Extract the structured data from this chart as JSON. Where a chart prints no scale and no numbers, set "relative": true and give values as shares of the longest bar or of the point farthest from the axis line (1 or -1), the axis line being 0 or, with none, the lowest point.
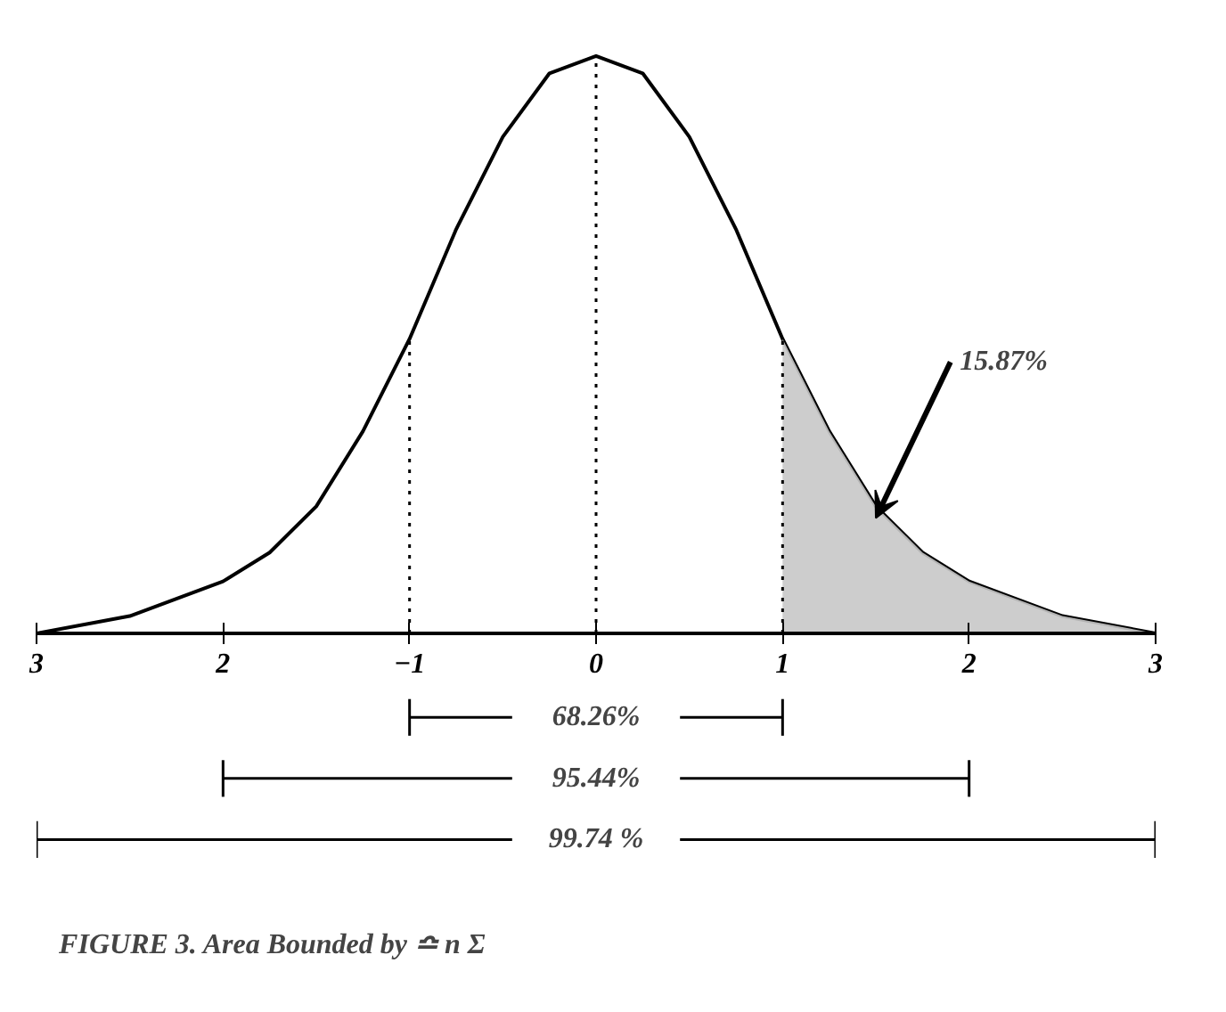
{
  "chart_data": {
    "type": "line",
    "relative": true,
    "title": "FIGURE 3. Area Bounded by ≏ n Σ",
    "x": [
      -3,
      -2.5,
      -2,
      -1.75,
      -1.5,
      -1.25,
      -1,
      -0.75,
      -0.5,
      -0.25,
      0,
      0.25,
      0.5,
      0.75,
      1,
      1.25,
      1.5,
      1.75,
      2,
      2.5,
      3
    ],
    "series": [
      {
        "color": "#000000",
        "values": [
          0,
          0.03,
          0.09,
          0.14,
          0.22,
          0.35,
          0.51,
          0.7,
          0.86,
          0.97,
          1,
          0.97,
          0.86,
          0.7,
          0.51,
          0.35,
          0.22,
          0.14,
          0.09,
          0.03,
          0
        ]
      },
      {
        "type": "area",
        "color": "#c8c8c8",
        "x": [
          1,
          1.25,
          1.5,
          1.75,
          2,
          2.5,
          3
        ],
        "values": [
          0.51,
          0.35,
          0.22,
          0.14,
          0.09,
          0.03,
          0
        ]
      }
    ],
    "xlim": [
      -3,
      3
    ],
    "xticks": [
      {
        "value": -3,
        "label": "3"
      },
      {
        "value": -2,
        "label": "2"
      },
      {
        "value": -1,
        "label": "−1"
      },
      0,
      1,
      2,
      3
    ],
    "ref_lines": [
      {
        "axis": "x",
        "value": -1,
        "line_style": "dotted"
      },
      {
        "axis": "x",
        "value": 0,
        "line_style": "dotted"
      },
      {
        "axis": "x",
        "value": 1,
        "line_style": "dotted"
      }
    ],
    "annotations": [
      {
        "text": "15.87%",
        "x": 1.5,
        "y": 0.2
      },
      "68.26%",
      "95.44%",
      "99.74 %"
    ],
    "grid": false,
    "marker": "none"
  }
}
